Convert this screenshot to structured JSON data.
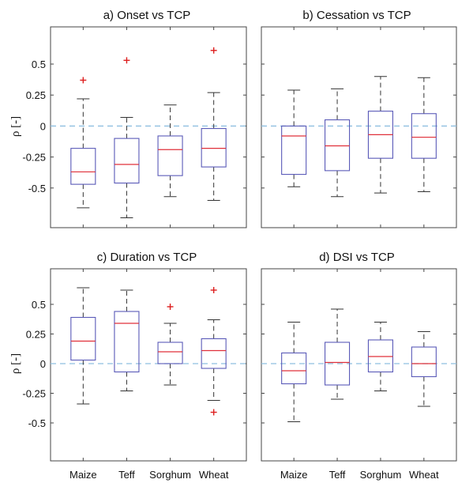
{
  "chart_data": [
    {
      "type": "box",
      "title": "a) Onset vs TCP",
      "ylabel": "ρ [-]",
      "ylim": [
        -0.82,
        0.8
      ],
      "yticks": [
        0.5,
        0.25,
        0,
        -0.25,
        -0.5
      ],
      "ytick_labels": [
        "0.5",
        "0.25",
        "0",
        "-0.25",
        "-0.5"
      ],
      "categories": [
        "Maize",
        "Teff",
        "Sorghum",
        "Wheat"
      ],
      "xtick_labels": [],
      "zero_line": 0,
      "boxes": [
        {
          "whisker_low": -0.66,
          "q1": -0.47,
          "median": -0.37,
          "q3": -0.18,
          "whisker_high": 0.22,
          "outliers": [
            0.37
          ]
        },
        {
          "whisker_low": -0.74,
          "q1": -0.46,
          "median": -0.31,
          "q3": -0.1,
          "whisker_high": 0.07,
          "outliers": [
            0.53
          ]
        },
        {
          "whisker_low": -0.57,
          "q1": -0.4,
          "median": -0.19,
          "q3": -0.08,
          "whisker_high": 0.17,
          "outliers": []
        },
        {
          "whisker_low": -0.6,
          "q1": -0.33,
          "median": -0.18,
          "q3": -0.02,
          "whisker_high": 0.27,
          "outliers": [
            0.61
          ]
        }
      ]
    },
    {
      "type": "box",
      "title": "b) Cessation vs TCP",
      "ylabel": "",
      "ylim": [
        -0.82,
        0.8
      ],
      "yticks": [
        0.5,
        0.25,
        0,
        -0.25,
        -0.5
      ],
      "ytick_labels": [],
      "categories": [
        "Maize",
        "Teff",
        "Sorghum",
        "Wheat"
      ],
      "xtick_labels": [],
      "zero_line": 0,
      "boxes": [
        {
          "whisker_low": -0.49,
          "q1": -0.39,
          "median": -0.08,
          "q3": 0.0,
          "whisker_high": 0.29,
          "outliers": []
        },
        {
          "whisker_low": -0.57,
          "q1": -0.36,
          "median": -0.16,
          "q3": 0.05,
          "whisker_high": 0.3,
          "outliers": []
        },
        {
          "whisker_low": -0.54,
          "q1": -0.26,
          "median": -0.07,
          "q3": 0.12,
          "whisker_high": 0.4,
          "outliers": []
        },
        {
          "whisker_low": -0.53,
          "q1": -0.26,
          "median": -0.09,
          "q3": 0.1,
          "whisker_high": 0.39,
          "outliers": []
        }
      ]
    },
    {
      "type": "box",
      "title": "c) Duration vs TCP",
      "ylabel": "ρ [-]",
      "ylim": [
        -0.82,
        0.8
      ],
      "yticks": [
        0.5,
        0.25,
        0,
        -0.25,
        -0.5
      ],
      "ytick_labels": [
        "0.5",
        "0.25",
        "0",
        "-0.25",
        "-0.5"
      ],
      "categories": [
        "Maize",
        "Teff",
        "Sorghum",
        "Wheat"
      ],
      "xtick_labels": [
        "Maize",
        "Teff",
        "Sorghum",
        "Wheat"
      ],
      "zero_line": 0,
      "boxes": [
        {
          "whisker_low": -0.34,
          "q1": 0.03,
          "median": 0.19,
          "q3": 0.39,
          "whisker_high": 0.64,
          "outliers": []
        },
        {
          "whisker_low": -0.23,
          "q1": -0.07,
          "median": 0.34,
          "q3": 0.44,
          "whisker_high": 0.62,
          "outliers": []
        },
        {
          "whisker_low": -0.18,
          "q1": 0.0,
          "median": 0.1,
          "q3": 0.18,
          "whisker_high": 0.34,
          "outliers": [
            0.48
          ]
        },
        {
          "whisker_low": -0.31,
          "q1": -0.04,
          "median": 0.11,
          "q3": 0.21,
          "whisker_high": 0.37,
          "outliers": [
            0.62,
            -0.41
          ]
        }
      ]
    },
    {
      "type": "box",
      "title": "d) DSI vs TCP",
      "ylabel": "",
      "ylim": [
        -0.82,
        0.8
      ],
      "yticks": [
        0.5,
        0.25,
        0,
        -0.25,
        -0.5
      ],
      "ytick_labels": [],
      "categories": [
        "Maize",
        "Teff",
        "Sorghum",
        "Wheat"
      ],
      "xtick_labels": [
        "Maize",
        "Teff",
        "Sorghum",
        "Wheat"
      ],
      "zero_line": 0,
      "boxes": [
        {
          "whisker_low": -0.49,
          "q1": -0.17,
          "median": -0.06,
          "q3": 0.09,
          "whisker_high": 0.35,
          "outliers": []
        },
        {
          "whisker_low": -0.3,
          "q1": -0.18,
          "median": 0.01,
          "q3": 0.18,
          "whisker_high": 0.46,
          "outliers": []
        },
        {
          "whisker_low": -0.23,
          "q1": -0.07,
          "median": 0.06,
          "q3": 0.2,
          "whisker_high": 0.35,
          "outliers": []
        },
        {
          "whisker_low": -0.36,
          "q1": -0.11,
          "median": 0.0,
          "q3": 0.14,
          "whisker_high": 0.27,
          "outliers": []
        }
      ]
    }
  ],
  "colors": {
    "box": "#5a5ab8",
    "median": "#e0303a",
    "whisker": "#333333",
    "outlier": "#dd1e1e",
    "zero_line": "#8fbfe0",
    "axes": "#444444"
  }
}
